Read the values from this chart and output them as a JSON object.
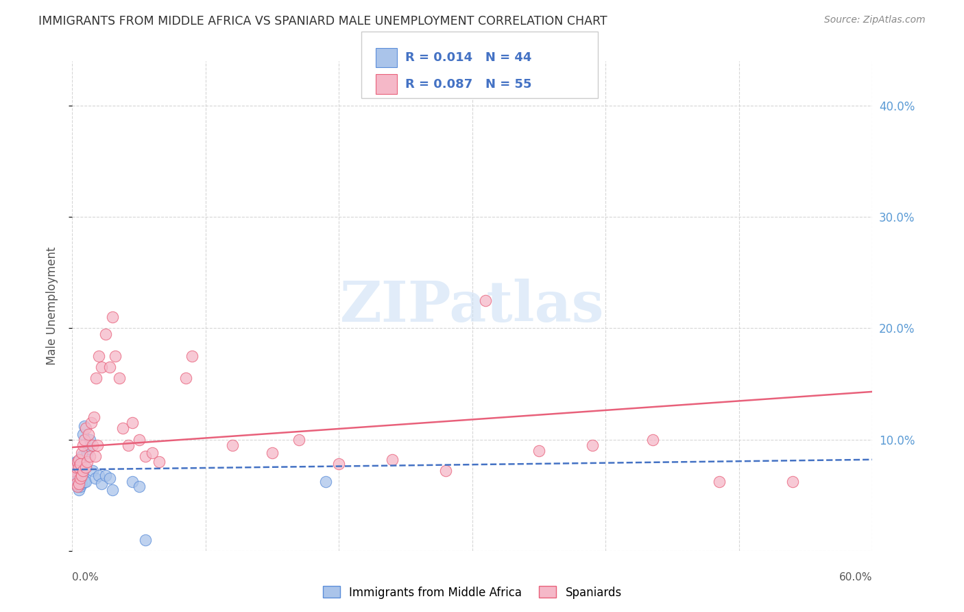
{
  "title": "IMMIGRANTS FROM MIDDLE AFRICA VS SPANIARD MALE UNEMPLOYMENT CORRELATION CHART",
  "source": "Source: ZipAtlas.com",
  "ylabel": "Male Unemployment",
  "xlim": [
    0.0,
    0.6
  ],
  "ylim": [
    0.0,
    0.44
  ],
  "legend_blue_R": "R = 0.014",
  "legend_blue_N": "N = 44",
  "legend_pink_R": "R = 0.087",
  "legend_pink_N": "N = 55",
  "legend_label_blue": "Immigrants from Middle Africa",
  "legend_label_pink": "Spaniards",
  "color_blue_fill": "#aac4ea",
  "color_pink_fill": "#f5b8c8",
  "color_blue_edge": "#5b8dd9",
  "color_pink_edge": "#e8607a",
  "color_blue_line": "#4472c4",
  "color_pink_line": "#e8607a",
  "color_title": "#333333",
  "color_right_axis": "#5b9bd5",
  "color_legend_text": "#4472c4",
  "watermark_color": "#cde0f5",
  "blue_x": [
    0.001,
    0.001,
    0.001,
    0.002,
    0.002,
    0.002,
    0.002,
    0.002,
    0.003,
    0.003,
    0.003,
    0.003,
    0.004,
    0.004,
    0.004,
    0.005,
    0.005,
    0.005,
    0.005,
    0.006,
    0.006,
    0.006,
    0.007,
    0.007,
    0.008,
    0.008,
    0.009,
    0.009,
    0.01,
    0.01,
    0.011,
    0.012,
    0.013,
    0.015,
    0.017,
    0.02,
    0.022,
    0.025,
    0.028,
    0.03,
    0.045,
    0.05,
    0.19,
    0.055
  ],
  "blue_y": [
    0.068,
    0.072,
    0.076,
    0.065,
    0.068,
    0.072,
    0.075,
    0.078,
    0.06,
    0.065,
    0.068,
    0.08,
    0.058,
    0.062,
    0.072,
    0.055,
    0.06,
    0.065,
    0.075,
    0.058,
    0.06,
    0.07,
    0.06,
    0.085,
    0.068,
    0.105,
    0.062,
    0.112,
    0.062,
    0.075,
    0.088,
    0.092,
    0.1,
    0.072,
    0.065,
    0.068,
    0.06,
    0.068,
    0.065,
    0.055,
    0.062,
    0.058,
    0.062,
    0.01
  ],
  "pink_x": [
    0.001,
    0.002,
    0.003,
    0.003,
    0.004,
    0.004,
    0.005,
    0.005,
    0.005,
    0.006,
    0.006,
    0.007,
    0.007,
    0.008,
    0.008,
    0.009,
    0.01,
    0.01,
    0.011,
    0.012,
    0.013,
    0.014,
    0.015,
    0.016,
    0.017,
    0.018,
    0.019,
    0.02,
    0.022,
    0.025,
    0.028,
    0.03,
    0.032,
    0.035,
    0.038,
    0.042,
    0.045,
    0.05,
    0.055,
    0.06,
    0.065,
    0.085,
    0.09,
    0.12,
    0.15,
    0.17,
    0.2,
    0.24,
    0.28,
    0.31,
    0.35,
    0.39,
    0.435,
    0.485,
    0.54
  ],
  "pink_y": [
    0.072,
    0.068,
    0.06,
    0.075,
    0.058,
    0.08,
    0.06,
    0.075,
    0.082,
    0.065,
    0.078,
    0.068,
    0.088,
    0.072,
    0.095,
    0.1,
    0.075,
    0.11,
    0.08,
    0.105,
    0.085,
    0.115,
    0.095,
    0.12,
    0.085,
    0.155,
    0.095,
    0.175,
    0.165,
    0.195,
    0.165,
    0.21,
    0.175,
    0.155,
    0.11,
    0.095,
    0.115,
    0.1,
    0.085,
    0.088,
    0.08,
    0.155,
    0.175,
    0.095,
    0.088,
    0.1,
    0.078,
    0.082,
    0.072,
    0.225,
    0.09,
    0.095,
    0.1,
    0.062,
    0.062
  ],
  "blue_trend_x": [
    0.0,
    0.6
  ],
  "blue_trend_y": [
    0.073,
    0.082
  ],
  "pink_trend_x": [
    0.0,
    0.6
  ],
  "pink_trend_y": [
    0.093,
    0.143
  ]
}
